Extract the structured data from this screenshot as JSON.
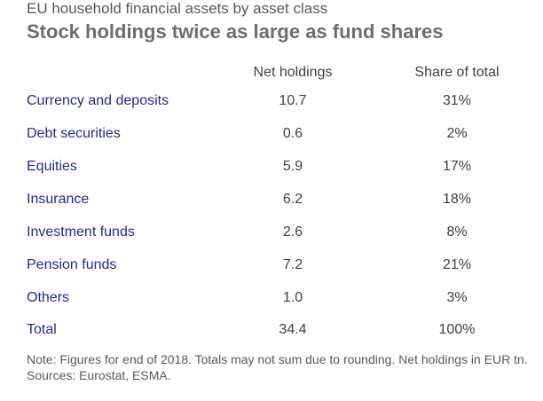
{
  "header": {
    "subtitle": "EU household financial assets by asset class",
    "title": "Stock holdings twice as large as fund shares"
  },
  "chart_data": {
    "type": "table",
    "title": "Stock holdings twice as large as fund shares",
    "subtitle": "EU household financial assets by asset class",
    "columns": [
      "Net holdings",
      "Share of total"
    ],
    "rows": [
      {
        "label": "Currency and deposits",
        "net_holdings": "10.7",
        "share": "31%"
      },
      {
        "label": "Debt securities",
        "net_holdings": "0.6",
        "share": "2%"
      },
      {
        "label": "Equities",
        "net_holdings": "5.9",
        "share": "17%"
      },
      {
        "label": "Insurance",
        "net_holdings": "6.2",
        "share": "18%"
      },
      {
        "label": "Investment funds",
        "net_holdings": "2.6",
        "share": "8%"
      },
      {
        "label": "Pension funds",
        "net_holdings": "7.2",
        "share": "21%"
      },
      {
        "label": "Others",
        "net_holdings": "1.0",
        "share": "3%"
      },
      {
        "label": "Total",
        "net_holdings": "34.4",
        "share": "100%"
      }
    ]
  },
  "footer": {
    "note": "Note: Figures for end of 2018. Totals may not sum due to rounding. Net holdings in EUR tn.",
    "sources": "Sources: Eurostat, ESMA."
  }
}
